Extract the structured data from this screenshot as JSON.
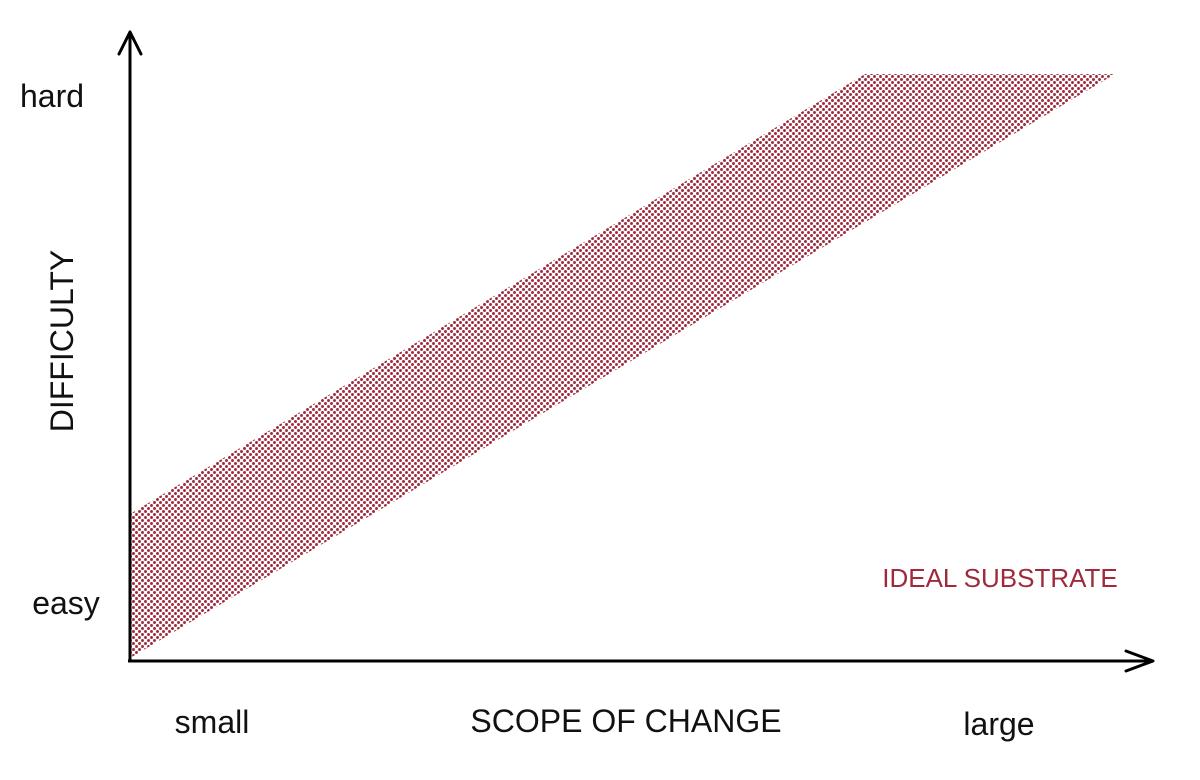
{
  "colors": {
    "band": "#a0283a",
    "region_label": "#9e2a3c",
    "axis": "#000000"
  },
  "axes": {
    "y_title": "DIFFICULTY",
    "x_title": "SCOPE OF CHANGE",
    "y_ticks": {
      "high": "hard",
      "low": "easy"
    },
    "x_ticks": {
      "low": "small",
      "high": "large"
    }
  },
  "region": {
    "label": "IDEAL SUBSTRATE"
  }
}
